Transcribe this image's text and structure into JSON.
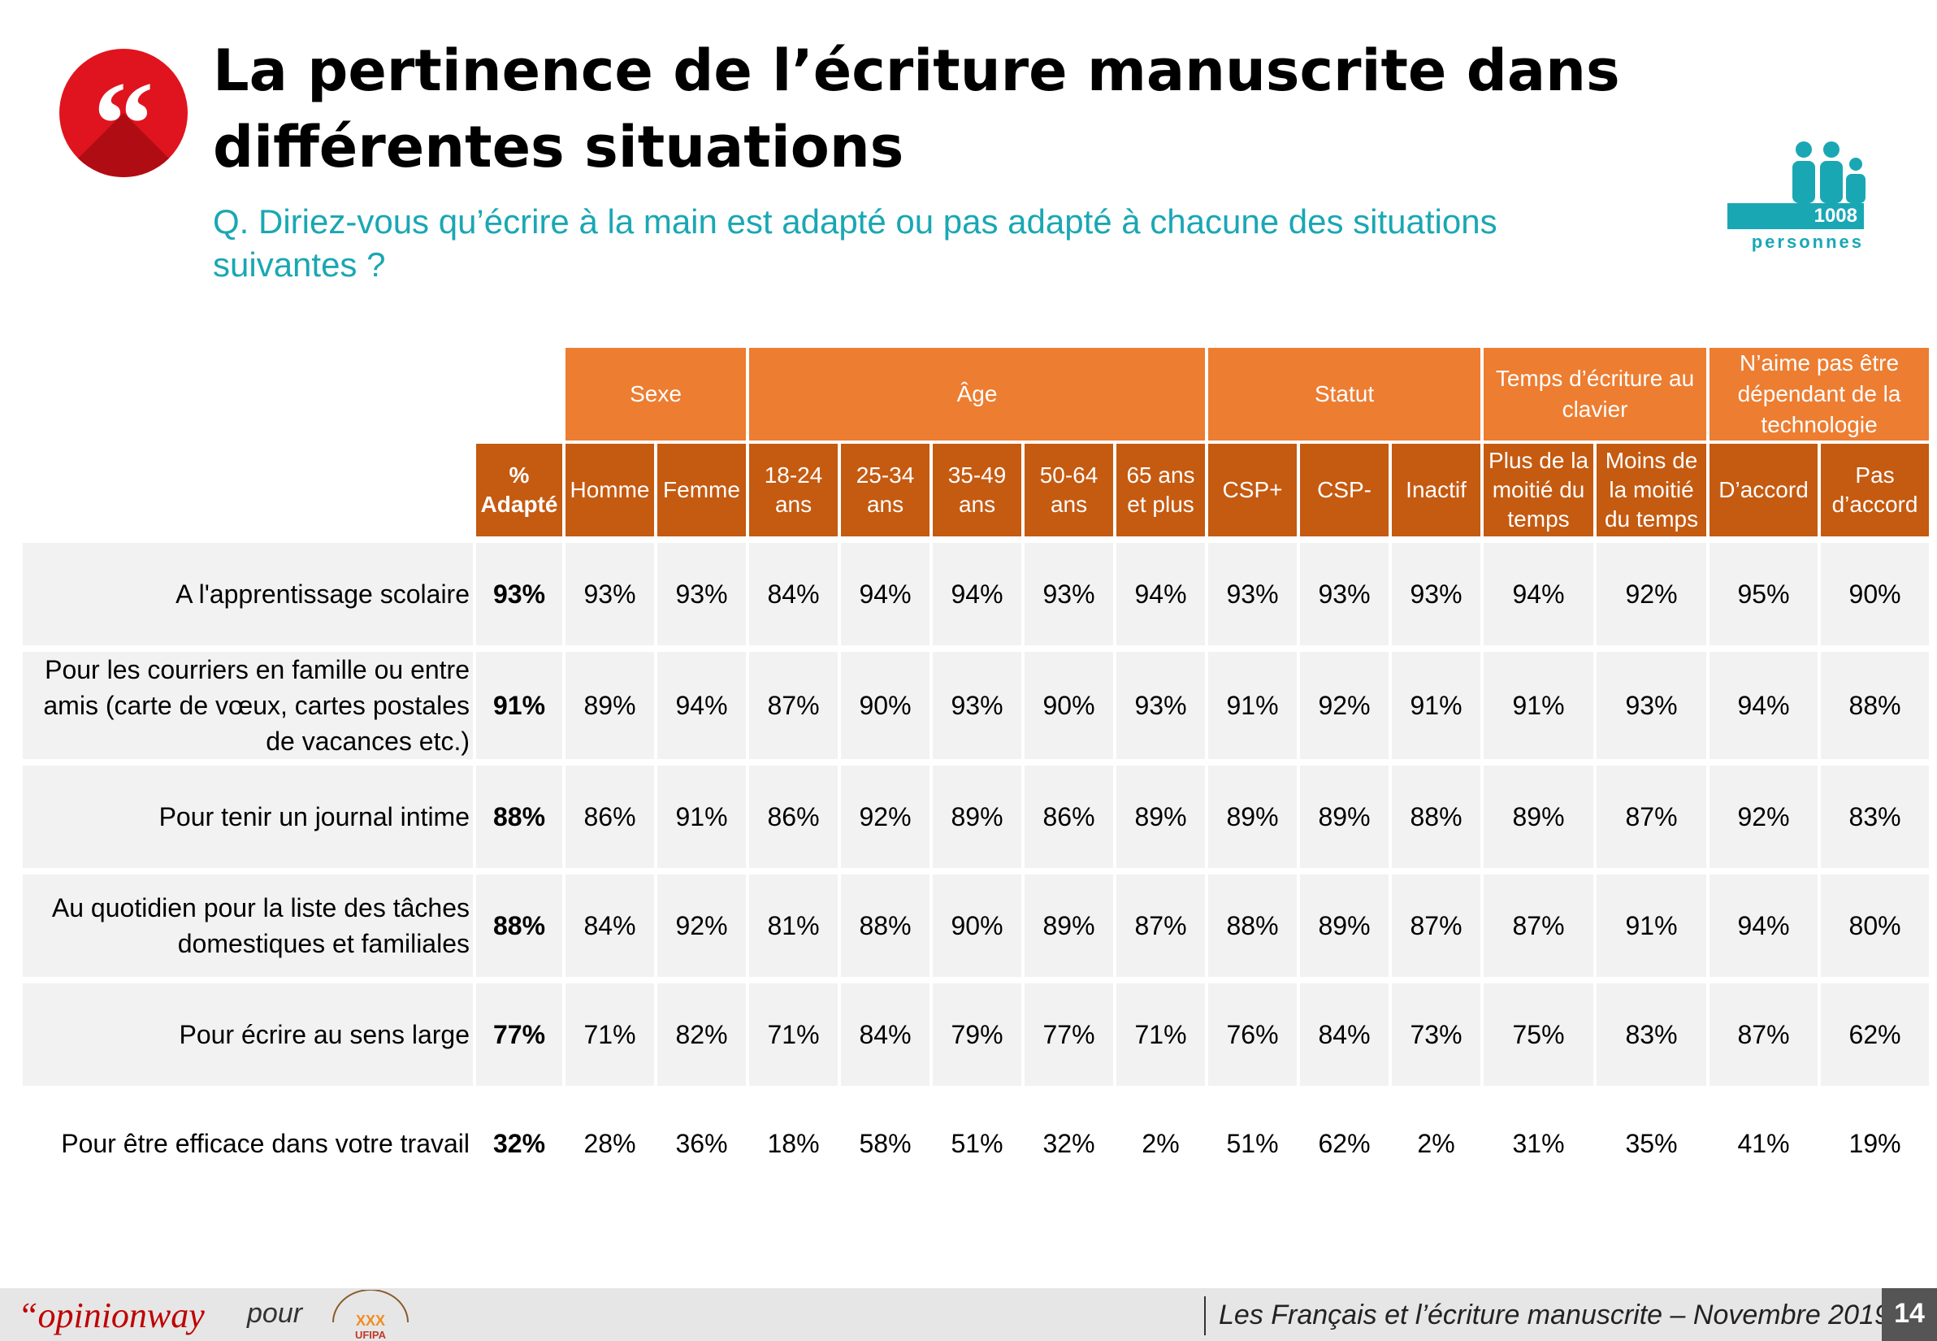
{
  "title": "La pertinence de l’écriture manuscrite dans différentes situations",
  "question": "Q. Diriez-vous qu’écrire à la main est adapté ou pas adapté à chacune des situations suivantes ?",
  "sample": {
    "count": "1008",
    "label": "personnes"
  },
  "colors": {
    "accent": "#ed7d31",
    "accent_dark": "#c55a11",
    "teal": "#1aa7b4",
    "badge": "#e0141e"
  },
  "groups": [
    {
      "label": "Sexe",
      "span": 2
    },
    {
      "label": "Âge",
      "span": 5
    },
    {
      "label": "Statut",
      "span": 3
    },
    {
      "label": "Temps d’écriture au clavier",
      "span": 2
    },
    {
      "label": "N’aime pas être dépendant de la technologie",
      "span": 2
    }
  ],
  "subheaders": {
    "total": "% Adapté",
    "columns": [
      "Homme",
      "Femme",
      "18-24 ans",
      "25-34 ans",
      "35-49 ans",
      "50-64 ans",
      "65 ans et plus",
      "CSP+",
      "CSP-",
      "Inactif",
      "Plus de la moitié du temps",
      "Moins de la moitié du temps",
      "D’accord",
      "Pas d’accord"
    ]
  },
  "chart_data": {
    "type": "table",
    "title": "La pertinence de l’écriture manuscrite dans différentes situations",
    "columns": [
      "% Adapté",
      "Homme",
      "Femme",
      "18-24 ans",
      "25-34 ans",
      "35-49 ans",
      "50-64 ans",
      "65 ans et plus",
      "CSP+",
      "CSP-",
      "Inactif",
      "Plus de la moitié du temps",
      "Moins de la moitié du temps",
      "D’accord",
      "Pas d’accord"
    ],
    "rows": [
      {
        "label": "A l'apprentissage scolaire",
        "values": [
          "93%",
          "93%",
          "93%",
          "84%",
          "94%",
          "94%",
          "93%",
          "94%",
          "93%",
          "93%",
          "93%",
          "94%",
          "92%",
          "95%",
          "90%"
        ]
      },
      {
        "label": "Pour les courriers en famille ou entre amis (carte de vœux, cartes postales de vacances etc.)",
        "values": [
          "91%",
          "89%",
          "94%",
          "87%",
          "90%",
          "93%",
          "90%",
          "93%",
          "91%",
          "92%",
          "91%",
          "91%",
          "93%",
          "94%",
          "88%"
        ]
      },
      {
        "label": "Pour tenir un journal intime",
        "values": [
          "88%",
          "86%",
          "91%",
          "86%",
          "92%",
          "89%",
          "86%",
          "89%",
          "89%",
          "89%",
          "88%",
          "89%",
          "87%",
          "92%",
          "83%"
        ]
      },
      {
        "label": "Au quotidien pour la liste des tâches domestiques et familiales",
        "values": [
          "88%",
          "84%",
          "92%",
          "81%",
          "88%",
          "90%",
          "89%",
          "87%",
          "88%",
          "89%",
          "87%",
          "87%",
          "91%",
          "94%",
          "80%"
        ]
      },
      {
        "label": "Pour écrire au sens large",
        "values": [
          "77%",
          "71%",
          "82%",
          "71%",
          "84%",
          "79%",
          "77%",
          "71%",
          "76%",
          "84%",
          "73%",
          "75%",
          "83%",
          "87%",
          "62%"
        ]
      },
      {
        "label": "Pour être efficace dans votre travail",
        "values": [
          "32%",
          "28%",
          "36%",
          "18%",
          "58%",
          "51%",
          "32%",
          "2%",
          "51%",
          "62%",
          "2%",
          "31%",
          "35%",
          "41%",
          "19%"
        ]
      }
    ]
  },
  "footer": {
    "brand_quote": "“",
    "brand": "opinionway",
    "pour": "pour",
    "partner_logo_text": "XXX UFIPA",
    "right_text": "Les Français et l’écriture manuscrite – Novembre 2019",
    "page": "14"
  }
}
